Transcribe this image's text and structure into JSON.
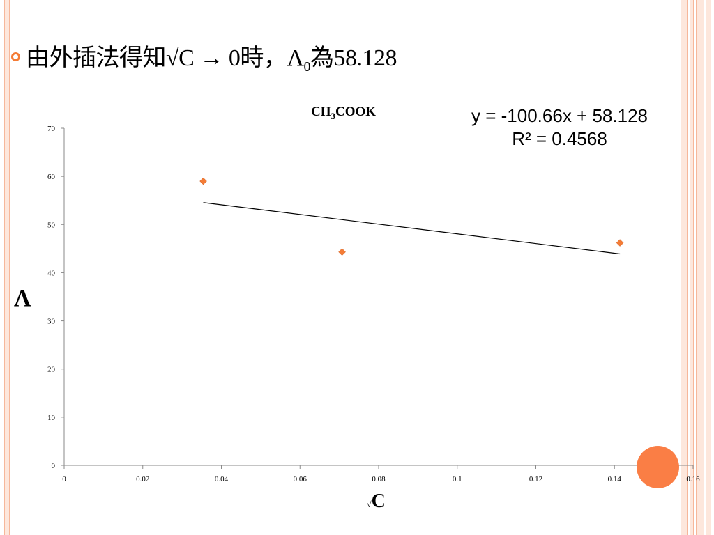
{
  "slide": {
    "headline_prefix": "由外插法得知√C → 0時，Λ",
    "headline_sub": "0",
    "headline_suffix": "為58.128"
  },
  "colors": {
    "accent": "#f47c36",
    "marker": "#f47c36",
    "circle": "#fa7e45",
    "frame_pink": "#fde7dc"
  },
  "chart_data": {
    "type": "scatter",
    "title_main": "CH",
    "title_sub": "3",
    "title_rest": "COOK",
    "xlabel_radical": "√",
    "xlabel": "C",
    "ylabel": "Λ",
    "equation": "y = -100.66x + 58.128",
    "r_squared": "R² = 0.4568",
    "xlim": [
      0,
      0.16
    ],
    "ylim": [
      0,
      70
    ],
    "x_ticks": [
      "0",
      "0.02",
      "0.04",
      "0.06",
      "0.08",
      "0.1",
      "0.12",
      "0.14",
      "0.16"
    ],
    "y_ticks": [
      "0",
      "10",
      "20",
      "30",
      "40",
      "50",
      "60",
      "70"
    ],
    "points": [
      {
        "x": 0.0354,
        "y": 59.0
      },
      {
        "x": 0.0707,
        "y": 44.3
      },
      {
        "x": 0.1414,
        "y": 46.2
      }
    ],
    "trendline": {
      "slope": -100.66,
      "intercept": 58.128,
      "x_start": 0.0354,
      "x_end": 0.1414
    },
    "grid": false,
    "legend": "none"
  }
}
